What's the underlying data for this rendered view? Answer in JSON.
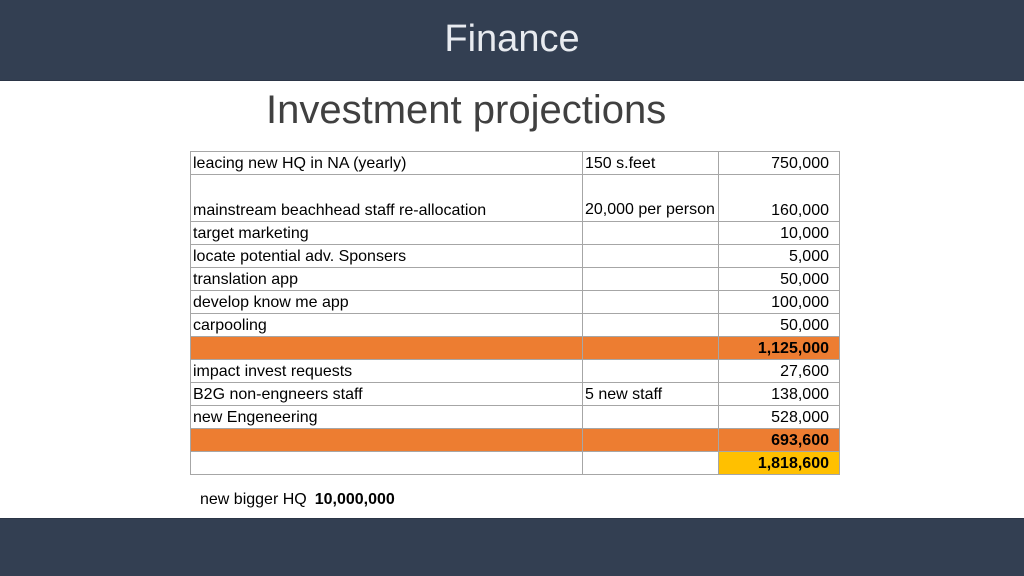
{
  "header": {
    "title": "Finance"
  },
  "subtitle": "Investment projections",
  "colors": {
    "band": "#333f52",
    "orange": "#ed7d31",
    "yellow": "#ffc000"
  },
  "table": {
    "rows": [
      {
        "item": "leacing new HQ in NA (yearly)",
        "note": "150 s.feet",
        "amount": "750,000"
      },
      {
        "item": "mainstream beachhead staff re-allocation",
        "note": "20,000 per person",
        "amount": "160,000"
      },
      {
        "item": "target marketing",
        "note": "",
        "amount": "10,000"
      },
      {
        "item": "locate potential adv. Sponsers",
        "note": "",
        "amount": "5,000"
      },
      {
        "item": "translation app",
        "note": "",
        "amount": "50,000"
      },
      {
        "item": "develop know me app",
        "note": "",
        "amount": "100,000"
      },
      {
        "item": "carpooling",
        "note": "",
        "amount": "50,000"
      },
      {
        "item": "",
        "note": "",
        "amount": "1,125,000"
      },
      {
        "item": "impact invest requests",
        "note": "",
        "amount": "27,600"
      },
      {
        "item": "B2G non-engneers staff",
        "note": "5 new staff",
        "amount": "138,000"
      },
      {
        "item": "new Engeneering",
        "note": "",
        "amount": "528,000"
      },
      {
        "item": "",
        "note": "",
        "amount": "693,600"
      },
      {
        "item": "",
        "note": "",
        "amount": "1,818,600"
      }
    ]
  },
  "footer_note": {
    "label": "new bigger HQ",
    "value": "10,000,000"
  }
}
